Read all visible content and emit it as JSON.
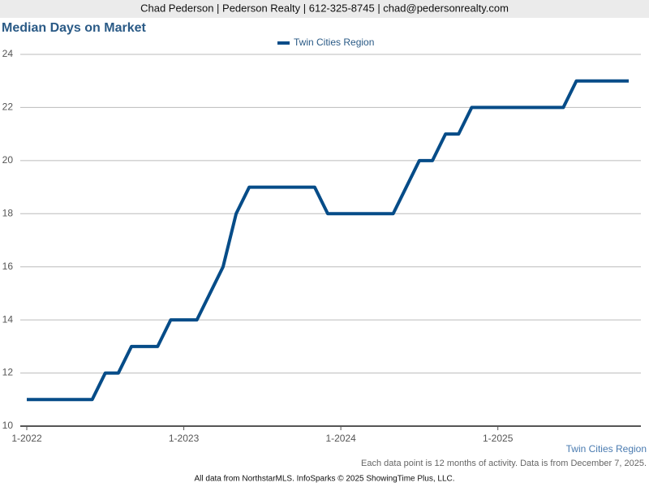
{
  "header": {
    "contact": "Chad Pederson | Pederson Realty | 612-325-8745 | chad@pedersonrealty.com"
  },
  "chart_data": {
    "type": "line",
    "title": "Median Days on Market",
    "categories": [
      "1-2022",
      null,
      null,
      null,
      null,
      null,
      null,
      null,
      null,
      null,
      null,
      null,
      "1-2023",
      null,
      null,
      null,
      null,
      null,
      null,
      null,
      null,
      null,
      null,
      null,
      "1-2024",
      null,
      null,
      null,
      null,
      null,
      null,
      null,
      null,
      null,
      null,
      null,
      "1-2025",
      null,
      null,
      null,
      null,
      null,
      null,
      null,
      null,
      null,
      null
    ],
    "series": [
      {
        "name": "Twin Cities Region",
        "color": "#064c88",
        "values": [
          11,
          11,
          11,
          11,
          11,
          11,
          12,
          12,
          13,
          13,
          13,
          14,
          14,
          14,
          15,
          16,
          18,
          19,
          19,
          19,
          19,
          19,
          19,
          18,
          18,
          18,
          18,
          18,
          18,
          19,
          20,
          20,
          21,
          21,
          22,
          22,
          22,
          22,
          22,
          22,
          22,
          22,
          23,
          23,
          23,
          23,
          23
        ]
      }
    ],
    "ylim": [
      10,
      24
    ],
    "yticks": [
      10,
      12,
      14,
      16,
      18,
      20,
      22,
      24
    ],
    "grid": true,
    "legend": "top",
    "region_label": "Twin Cities Region",
    "note": "Each data point is 12 months of activity. Data is from December 7, 2025."
  },
  "footer": {
    "credit": "All data from NorthstarMLS. InfoSparks © 2025 ShowingTime Plus, LLC."
  }
}
